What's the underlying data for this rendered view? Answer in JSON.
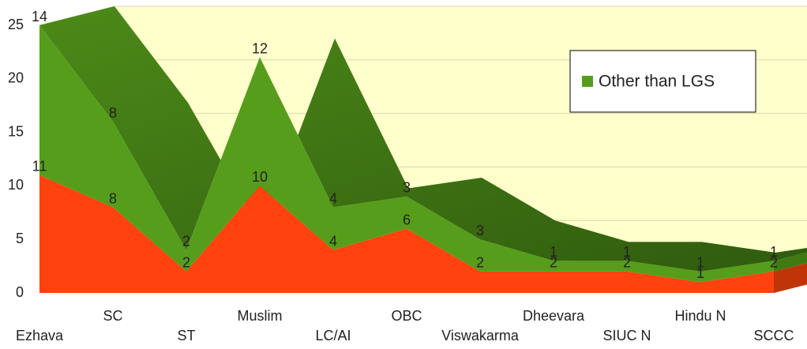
{
  "chart_data": {
    "type": "area3d_stacked",
    "categories": [
      "Ezhava",
      "SC",
      "ST",
      "Muslim",
      "LC/AI",
      "OBC",
      "Viswakarma",
      "Dheevara",
      "SIUC N",
      "Hindu N",
      "SCCC"
    ],
    "series": [
      {
        "color": "#ff420e",
        "values": [
          11,
          8,
          2,
          10,
          4,
          6,
          2,
          2,
          2,
          1,
          2
        ]
      },
      {
        "name": "Other than LGS",
        "color": "#579d1c",
        "values": [
          14,
          8,
          2,
          12,
          4,
          3,
          3,
          1,
          1,
          1,
          1
        ]
      }
    ],
    "ylim": [
      0,
      25
    ],
    "yticks": [
      0,
      5,
      10,
      15,
      20,
      25
    ],
    "grid": true,
    "legend": "upper right"
  }
}
